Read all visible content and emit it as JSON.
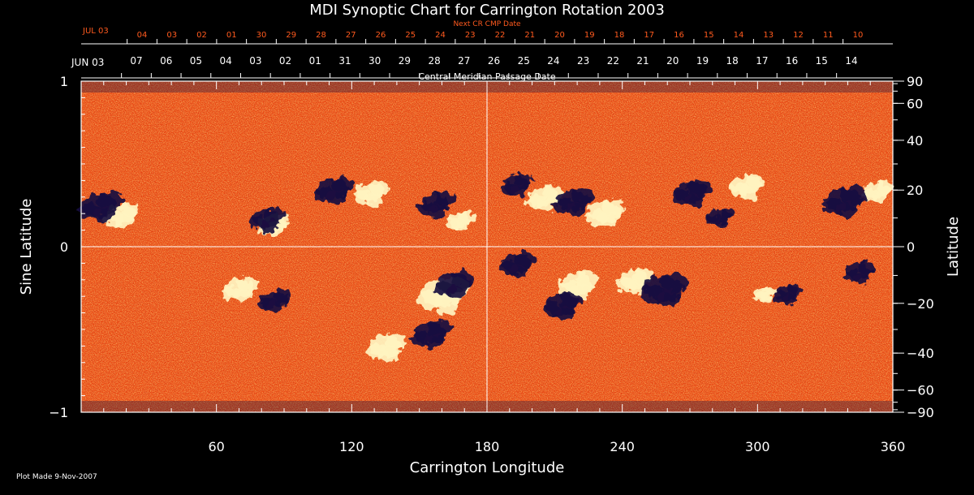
{
  "chart_data": {
    "type": "heatmap",
    "title": "MDI Synoptic Chart for Carrington Rotation 2003",
    "xlabel": "Carrington Longitude",
    "ylabel_left": "Sine Latitude",
    "ylabel_right": "Latitude",
    "xlim": [
      0,
      360
    ],
    "ylim": [
      -1,
      1
    ],
    "x_ticks": [
      60,
      120,
      180,
      240,
      300,
      360
    ],
    "y_ticks_left": [
      {
        "v": 1,
        "label": "1"
      },
      {
        "v": 0,
        "label": "0"
      },
      {
        "v": -1,
        "label": "−1"
      }
    ],
    "y_ticks_right": [
      {
        "deg": 90,
        "label": "90"
      },
      {
        "deg": 60,
        "label": "60"
      },
      {
        "deg": 40,
        "label": "40"
      },
      {
        "deg": 20,
        "label": "20"
      },
      {
        "deg": 0,
        "label": "0"
      },
      {
        "deg": -20,
        "label": "−20"
      },
      {
        "deg": -40,
        "label": "−40"
      },
      {
        "deg": -60,
        "label": "−60"
      },
      {
        "deg": -90,
        "label": "−90"
      }
    ],
    "cmp_axis_title": "Central Meridian Passage Date",
    "cmp_start_label": "JUN 03",
    "cmp_dates": [
      "07",
      "06",
      "05",
      "04",
      "03",
      "02",
      "01",
      "31",
      "30",
      "29",
      "28",
      "27",
      "26",
      "25",
      "24",
      "23",
      "22",
      "21",
      "20",
      "19",
      "18",
      "17",
      "16",
      "15",
      "14"
    ],
    "next_cmp_title": "Next CR CMP Date",
    "next_cmp_start_label": "JUL 03",
    "next_cmp_dates": [
      "04",
      "03",
      "02",
      "01",
      "30",
      "29",
      "28",
      "27",
      "26",
      "25",
      "24",
      "23",
      "22",
      "21",
      "20",
      "19",
      "18",
      "17",
      "16",
      "15",
      "14",
      "13",
      "12",
      "11",
      "10"
    ],
    "positive_regions": [
      {
        "lon": 18,
        "slat": 0.2,
        "size": 0.9
      },
      {
        "lon": 85,
        "slat": 0.14,
        "size": 0.8
      },
      {
        "lon": 128,
        "slat": 0.33,
        "size": 0.9
      },
      {
        "lon": 168,
        "slat": 0.16,
        "size": 0.7
      },
      {
        "lon": 205,
        "slat": 0.3,
        "size": 0.9
      },
      {
        "lon": 232,
        "slat": 0.21,
        "size": 1.0
      },
      {
        "lon": 295,
        "slat": 0.37,
        "size": 0.9
      },
      {
        "lon": 353,
        "slat": 0.34,
        "size": 0.8
      },
      {
        "lon": 70,
        "slat": -0.25,
        "size": 0.9
      },
      {
        "lon": 160,
        "slat": -0.28,
        "size": 1.3
      },
      {
        "lon": 135,
        "slat": -0.6,
        "size": 1.0
      },
      {
        "lon": 220,
        "slat": -0.22,
        "size": 1.0
      },
      {
        "lon": 245,
        "slat": -0.2,
        "size": 0.9
      },
      {
        "lon": 303,
        "slat": -0.28,
        "size": 0.6
      }
    ],
    "negative_regions": [
      {
        "lon": 8,
        "slat": 0.25,
        "size": 1.1
      },
      {
        "lon": 82,
        "slat": 0.17,
        "size": 0.9
      },
      {
        "lon": 112,
        "slat": 0.35,
        "size": 1.0
      },
      {
        "lon": 157,
        "slat": 0.26,
        "size": 0.9
      },
      {
        "lon": 193,
        "slat": 0.38,
        "size": 0.8
      },
      {
        "lon": 218,
        "slat": 0.28,
        "size": 1.0
      },
      {
        "lon": 270,
        "slat": 0.33,
        "size": 1.0
      },
      {
        "lon": 283,
        "slat": 0.18,
        "size": 0.7
      },
      {
        "lon": 338,
        "slat": 0.28,
        "size": 1.1
      },
      {
        "lon": 85,
        "slat": -0.32,
        "size": 0.8
      },
      {
        "lon": 165,
        "slat": -0.22,
        "size": 1.0
      },
      {
        "lon": 155,
        "slat": -0.52,
        "size": 1.0
      },
      {
        "lon": 193,
        "slat": -0.1,
        "size": 0.9
      },
      {
        "lon": 213,
        "slat": -0.35,
        "size": 1.0
      },
      {
        "lon": 258,
        "slat": -0.25,
        "size": 1.2
      },
      {
        "lon": 313,
        "slat": -0.28,
        "size": 0.7
      },
      {
        "lon": 345,
        "slat": -0.15,
        "size": 0.8
      }
    ],
    "colors": {
      "background": "#000000",
      "field_base": "#e8420f",
      "positive": "#fff4c0",
      "negative": "#1a1140",
      "grid": "#ffffff",
      "date_red": "#ff5a1e"
    }
  },
  "footer": {
    "plot_made": "Plot Made  9-Nov-2007"
  }
}
